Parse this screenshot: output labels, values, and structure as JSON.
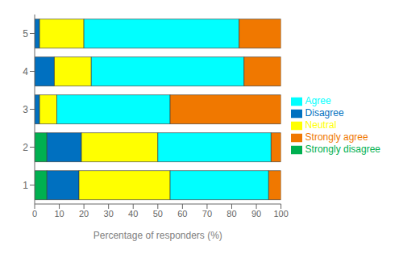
{
  "chart_data": {
    "type": "bar",
    "orientation": "horizontal",
    "stacked": true,
    "categories": [
      "1",
      "2",
      "3",
      "4",
      "5"
    ],
    "series": [
      {
        "name": "Strongly disagree",
        "color": "#00b050",
        "values": [
          5,
          5,
          0,
          0,
          0
        ]
      },
      {
        "name": "Disagree",
        "color": "#0070c0",
        "values": [
          13,
          14,
          2,
          8,
          2
        ]
      },
      {
        "name": "Neutral",
        "color": "#ffff00",
        "values": [
          37,
          31,
          7,
          15,
          18
        ]
      },
      {
        "name": "Agree",
        "color": "#00ffff",
        "values": [
          40,
          46,
          46,
          62,
          63
        ]
      },
      {
        "name": "Strongly agree",
        "color": "#f07800",
        "values": [
          5,
          4,
          45,
          15,
          17
        ]
      }
    ],
    "xlabel": "Percentage of responders (%)",
    "xlim": [
      0,
      100
    ],
    "xticks": [
      0,
      10,
      20,
      30,
      40,
      50,
      60,
      70,
      80,
      90,
      100
    ],
    "grid": false,
    "legend": "right"
  }
}
